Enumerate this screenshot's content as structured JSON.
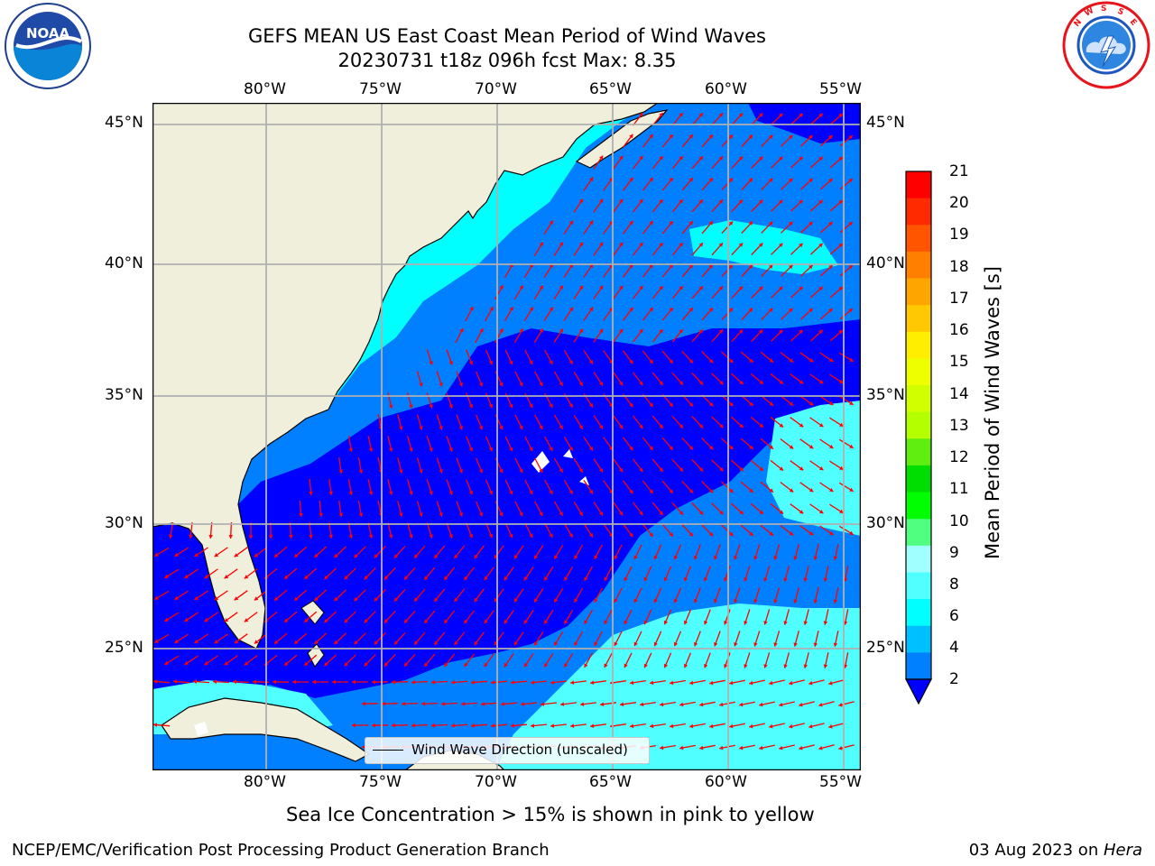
{
  "title": {
    "line1": "GEFS MEAN US East Coast Mean Period of Wind Waves",
    "line2": "20230731 t18z 096h fcst   Max: 8.35"
  },
  "logos": {
    "left": {
      "name": "NOAA",
      "text": "NOAA"
    },
    "right": {
      "name": "National Weather Service"
    }
  },
  "axes": {
    "lon_labels": [
      "80°W",
      "75°W",
      "70°W",
      "65°W",
      "60°W",
      "55°W"
    ],
    "lat_labels": [
      "45°N",
      "40°N",
      "35°N",
      "30°N",
      "25°N"
    ]
  },
  "legend": {
    "label": "Wind Wave Direction (unscaled)"
  },
  "colorbar": {
    "title": "Mean Period of Wind Waves [s]",
    "labels": [
      "21",
      "20",
      "19",
      "18",
      "17",
      "16",
      "15",
      "14",
      "13",
      "12",
      "11",
      "10",
      "9",
      "8",
      "6",
      "4",
      "2"
    ],
    "colors": [
      "#ff0000",
      "#ff2a00",
      "#ff5500",
      "#ff7f00",
      "#ffa500",
      "#ffc800",
      "#ffee00",
      "#eeff00",
      "#d2ff00",
      "#b4ff00",
      "#60ee10",
      "#00dd00",
      "#00ff00",
      "#50ff80",
      "#a0ffff",
      "#50ffff",
      "#00ffff",
      "#00bfff",
      "#0080ff"
    ],
    "extend_color": "#0000ff"
  },
  "map_colors": {
    "land": "#efefdc",
    "dark": "#0000ff",
    "mid": "#0080ff",
    "light": "#00ffff",
    "pale": "#50ffff",
    "arrow": "#ff0000",
    "grid": "#b0b0b0"
  },
  "subtitle": "Sea Ice Concentration > 15% is shown in pink to yellow",
  "footer": {
    "left": "NCEP/EMC/Verification Post Processing Product Generation Branch",
    "right_date": "03 Aug 2023 on ",
    "right_host": "Hera"
  }
}
